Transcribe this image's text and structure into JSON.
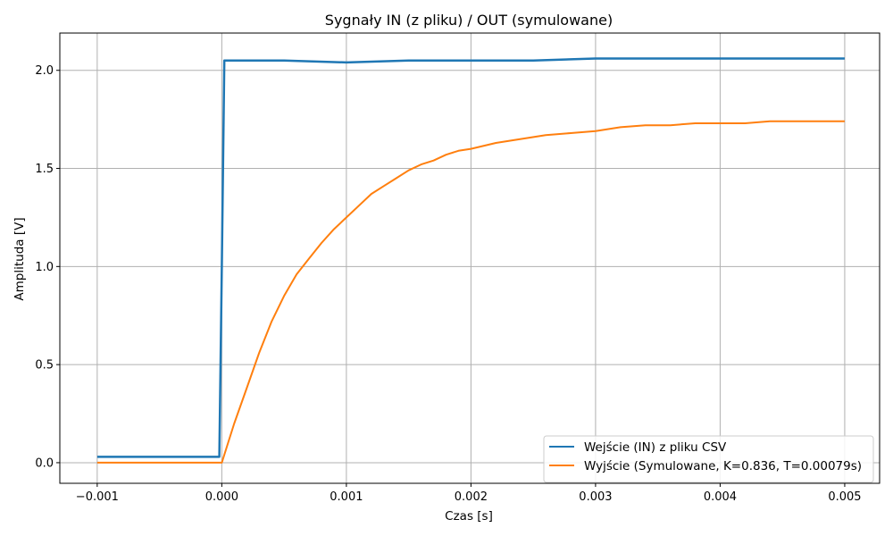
{
  "chart_data": {
    "type": "line",
    "title": "Sygnały IN (z pliku) / OUT (symulowane)",
    "xlabel": "Czas [s]",
    "ylabel": "Amplituda [V]",
    "xlim": [
      -0.0013,
      0.00528
    ],
    "ylim": [
      -0.105,
      2.19
    ],
    "xticks": [
      -0.001,
      0.0,
      0.001,
      0.002,
      0.003,
      0.004,
      0.005
    ],
    "xtick_labels": [
      "−0.001",
      "0.000",
      "0.001",
      "0.002",
      "0.003",
      "0.004",
      "0.005"
    ],
    "yticks": [
      0.0,
      0.5,
      1.0,
      1.5,
      2.0
    ],
    "ytick_labels": [
      "0.0",
      "0.5",
      "1.0",
      "1.5",
      "2.0"
    ],
    "grid": true,
    "legend_position": "lower-right",
    "series": [
      {
        "name": "Wejście (IN) z pliku CSV",
        "color": "#1f77b4",
        "x": [
          -0.001,
          -0.0005,
          -2e-05,
          0.0,
          2e-05,
          0.0005,
          0.001,
          0.0015,
          0.002,
          0.0025,
          0.003,
          0.0035,
          0.004,
          0.0045,
          0.005
        ],
        "y": [
          0.03,
          0.03,
          0.03,
          1.0,
          2.05,
          2.05,
          2.04,
          2.05,
          2.05,
          2.05,
          2.06,
          2.06,
          2.06,
          2.06,
          2.06
        ]
      },
      {
        "name": "Wyjście (Symulowane, K=0.836, T=0.00079s)",
        "color": "#ff7f0e",
        "x": [
          -0.001,
          -0.0005,
          0.0,
          0.0001,
          0.0002,
          0.0003,
          0.0004,
          0.0005,
          0.0006,
          0.0007,
          0.0008,
          0.0009,
          0.001,
          0.0011,
          0.0012,
          0.0013,
          0.0014,
          0.0015,
          0.0016,
          0.0017,
          0.0018,
          0.0019,
          0.002,
          0.0022,
          0.0024,
          0.0026,
          0.0028,
          0.003,
          0.0032,
          0.0034,
          0.0036,
          0.0038,
          0.004,
          0.0042,
          0.0044,
          0.0046,
          0.0048,
          0.005
        ],
        "y": [
          0.0,
          0.0,
          0.0,
          0.2,
          0.38,
          0.56,
          0.72,
          0.85,
          0.96,
          1.04,
          1.12,
          1.19,
          1.25,
          1.31,
          1.37,
          1.41,
          1.45,
          1.49,
          1.52,
          1.54,
          1.57,
          1.59,
          1.6,
          1.63,
          1.65,
          1.67,
          1.68,
          1.69,
          1.71,
          1.72,
          1.72,
          1.73,
          1.73,
          1.73,
          1.74,
          1.74,
          1.74,
          1.74
        ]
      }
    ]
  }
}
